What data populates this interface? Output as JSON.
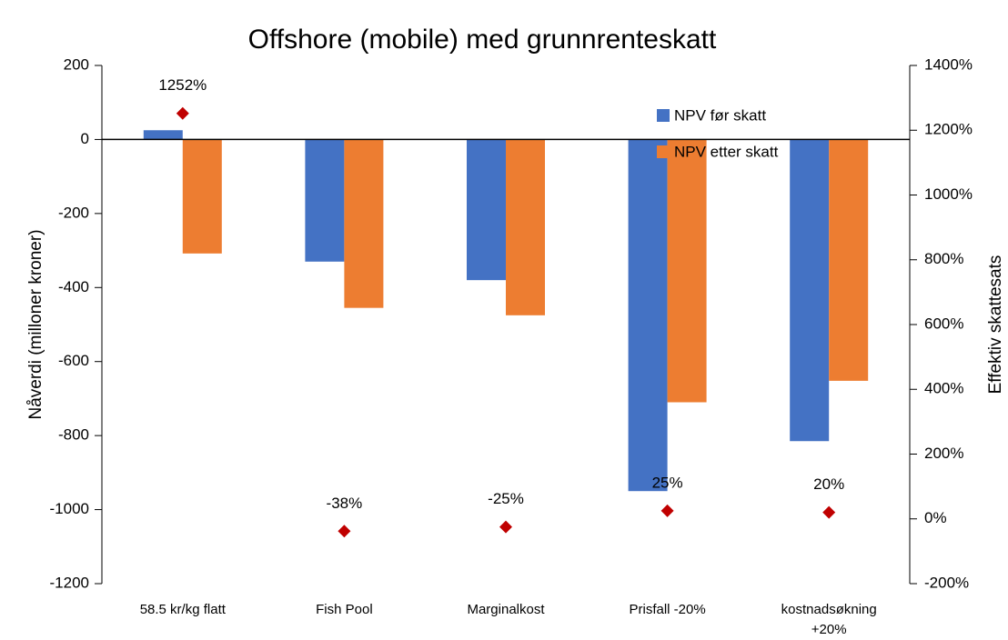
{
  "chart_data": {
    "type": "bar",
    "title": "Offshore (mobile) med grunnrenteskatt",
    "ylabel": "Nåverdi (milloner kroner)",
    "y2label": "Effektiv skattesats",
    "categories": [
      "58.5 kr/kg flatt",
      "Fish Pool",
      "Marginalkost",
      "Prisfall -20%",
      "kostnadsøkning +20%"
    ],
    "series": [
      {
        "name": "NPV før skatt",
        "color": "#4472c4",
        "values": [
          25,
          -330,
          -380,
          -950,
          -815
        ]
      },
      {
        "name": "NPV etter skatt",
        "color": "#ed7d31",
        "values": [
          -308,
          -455,
          -475,
          -710,
          -652
        ]
      },
      {
        "type": "scatter",
        "axis": "y2",
        "color": "#c00000",
        "values": [
          1252,
          -38,
          -25,
          25,
          20
        ],
        "value_labels": [
          "1252%",
          "-38%",
          "-25%",
          "25%",
          "20%"
        ]
      }
    ],
    "ylim": [
      -1200,
      200
    ],
    "yticks": [
      -1200,
      -1000,
      -800,
      -600,
      -400,
      -200,
      0,
      200
    ],
    "y2lim": [
      -200,
      1400
    ],
    "y2ticks": [
      {
        "value": -200,
        "label": "-200%"
      },
      {
        "value": 0,
        "label": "0%"
      },
      {
        "value": 200,
        "label": "200%"
      },
      {
        "value": 400,
        "label": "400%"
      },
      {
        "value": 600,
        "label": "600%"
      },
      {
        "value": 800,
        "label": "800%"
      },
      {
        "value": 1000,
        "label": "1000%"
      },
      {
        "value": 1200,
        "label": "1200%"
      },
      {
        "value": 1400,
        "label": "1400%"
      }
    ],
    "legend": "upper right"
  }
}
